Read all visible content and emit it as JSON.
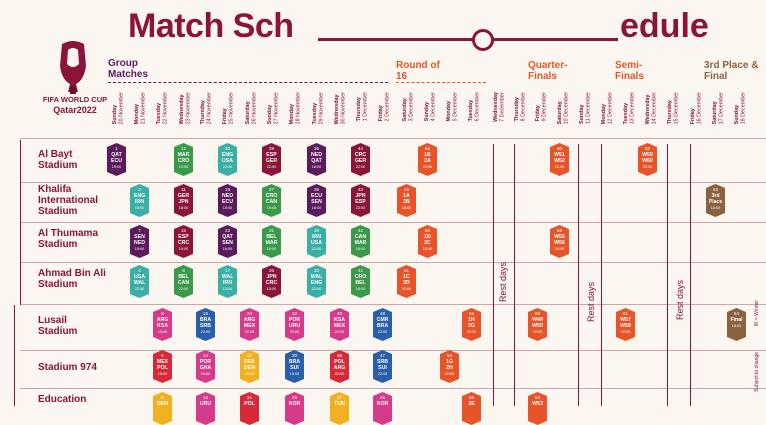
{
  "header": {
    "title_part1": "Match Sch",
    "title_part2": "edule"
  },
  "brand": {
    "line1": "FIFA WORLD CUP",
    "line2": "Qatar2022"
  },
  "stages": {
    "group": "Group Matches",
    "r16": "Round of 16",
    "qf": "Quarter-Finals",
    "sf": "Semi-Finals",
    "final": "3rd Place & Final"
  },
  "dates": [
    {
      "day": "Sunday",
      "date": "20 November"
    },
    {
      "day": "Monday",
      "date": "21 November"
    },
    {
      "day": "Tuesday",
      "date": "22 November"
    },
    {
      "day": "Wednesday",
      "date": "23 November"
    },
    {
      "day": "Thursday",
      "date": "24 November"
    },
    {
      "day": "Friday",
      "date": "25 November"
    },
    {
      "day": "Saturday",
      "date": "26 November"
    },
    {
      "day": "Sunday",
      "date": "27 November"
    },
    {
      "day": "Monday",
      "date": "28 November"
    },
    {
      "day": "Tuesday",
      "date": "29 November"
    },
    {
      "day": "Wednesday",
      "date": "30 November"
    },
    {
      "day": "Thursday",
      "date": "1 December"
    },
    {
      "day": "Friday",
      "date": "2 December"
    },
    {
      "day": "Saturday",
      "date": "3 December"
    },
    {
      "day": "Sunday",
      "date": "4 December"
    },
    {
      "day": "Monday",
      "date": "5 December"
    },
    {
      "day": "Tuesday",
      "date": "6 December"
    },
    {
      "day": "Wednesday",
      "date": "7 December"
    },
    {
      "day": "Thursday",
      "date": "8 December"
    },
    {
      "day": "Friday",
      "date": "9 December"
    },
    {
      "day": "Saturday",
      "date": "10 December"
    },
    {
      "day": "Sunday",
      "date": "11 December"
    },
    {
      "day": "Monday",
      "date": "12 December"
    },
    {
      "day": "Tuesday",
      "date": "13 December"
    },
    {
      "day": "Wednesday",
      "date": "14 December"
    },
    {
      "day": "Thursday",
      "date": "15 December"
    },
    {
      "day": "Friday",
      "date": "16 December"
    },
    {
      "day": "Saturday",
      "date": "17 December"
    },
    {
      "day": "Sunday",
      "date": "18 December"
    }
  ],
  "venues": [
    "Al Bayt Stadium",
    "Khalifa International Stadium",
    "Al Thumama Stadium",
    "Ahmad Bin Ali Stadium",
    "Lusail Stadium",
    "Stadium 974",
    "Education"
  ],
  "rest_label": "Rest days",
  "side_notes": {
    "winner": "W = Winner",
    "change": "Subject to change"
  },
  "colors": {
    "purple": "#5a1a5c",
    "green": "#3a9a4a",
    "teal": "#3ab0a4",
    "maroon": "#8a1538",
    "orange": "#e8542a",
    "brown": "#8a6240",
    "blue": "#2a5ea8",
    "pink": "#d63a8a",
    "yellow": "#f0b020",
    "red": "#d62a3a"
  },
  "matches": [
    {
      "n": "1",
      "a": "QAT",
      "b": "ECU",
      "t": "19:00",
      "c": "purple"
    },
    {
      "n": "12",
      "a": "MAR",
      "b": "CRO",
      "t": "13:00",
      "c": "green"
    },
    {
      "n": "20",
      "a": "ENG",
      "b": "USA",
      "t": "22:00",
      "c": "teal"
    },
    {
      "n": "28",
      "a": "ESP",
      "b": "GER",
      "t": "22:00",
      "c": "maroon"
    },
    {
      "n": "36",
      "a": "NED",
      "b": "QAT",
      "t": "18:00",
      "c": "purple"
    },
    {
      "n": "44",
      "a": "CRC",
      "b": "GER",
      "t": "22:00",
      "c": "maroon"
    },
    {
      "n": "52",
      "a": "1B",
      "b": "2A",
      "t": "22:00",
      "c": "orange"
    },
    {
      "n": "60",
      "a": "W51",
      "b": "W52",
      "t": "22:00",
      "c": "orange"
    },
    {
      "n": "62",
      "a": "W59",
      "b": "W60",
      "t": "22:00",
      "c": "orange"
    },
    {
      "n": "3",
      "a": "ENG",
      "b": "IRN",
      "t": "16:00",
      "c": "teal"
    },
    {
      "n": "11",
      "a": "GER",
      "b": "JPN",
      "t": "16:00",
      "c": "maroon"
    },
    {
      "n": "19",
      "a": "NED",
      "b": "ECU",
      "t": "19:00",
      "c": "purple"
    },
    {
      "n": "27",
      "a": "CRO",
      "b": "CAN",
      "t": "19:00",
      "c": "green"
    },
    {
      "n": "35",
      "a": "ECU",
      "b": "SEN",
      "t": "18:00",
      "c": "purple"
    },
    {
      "n": "43",
      "a": "JPN",
      "b": "ESP",
      "t": "22:00",
      "c": "maroon"
    },
    {
      "n": "49",
      "a": "1A",
      "b": "2B",
      "t": "18:00",
      "c": "orange"
    },
    {
      "n": "63",
      "a": "3rd",
      "b": "Place",
      "t": "18:00",
      "c": "brown"
    },
    {
      "n": "7",
      "a": "SEN",
      "b": "NED",
      "t": "19:00",
      "c": "purple"
    },
    {
      "n": "15",
      "a": "ESP",
      "b": "CRC",
      "t": "19:00",
      "c": "maroon"
    },
    {
      "n": "23",
      "a": "QAT",
      "b": "SEN",
      "t": "16:00",
      "c": "purple"
    },
    {
      "n": "31",
      "a": "BEL",
      "b": "MAR",
      "t": "16:00",
      "c": "green"
    },
    {
      "n": "39",
      "a": "IRN",
      "b": "USA",
      "t": "22:00",
      "c": "teal"
    },
    {
      "n": "42",
      "a": "CAN",
      "b": "MAR",
      "t": "18:00",
      "c": "green"
    },
    {
      "n": "50",
      "a": "1D",
      "b": "2C",
      "t": "18:00",
      "c": "orange"
    },
    {
      "n": "58",
      "a": "W55",
      "b": "W56",
      "t": "18:00",
      "c": "orange"
    },
    {
      "n": "4",
      "a": "USA",
      "b": "WAL",
      "t": "22:00",
      "c": "teal"
    },
    {
      "n": "8",
      "a": "BEL",
      "b": "CAN",
      "t": "22:00",
      "c": "green"
    },
    {
      "n": "17",
      "a": "WAL",
      "b": "IRN",
      "t": "13:00",
      "c": "teal"
    },
    {
      "n": "26",
      "a": "JPN",
      "b": "CRC",
      "t": "13:00",
      "c": "maroon"
    },
    {
      "n": "33",
      "a": "WAL",
      "b": "ENG",
      "t": "22:00",
      "c": "teal"
    },
    {
      "n": "41",
      "a": "CRO",
      "b": "BEL",
      "t": "18:00",
      "c": "green"
    },
    {
      "n": "51",
      "a": "1C",
      "b": "2D",
      "t": "22:00",
      "c": "orange"
    },
    {
      "n": "8",
      "a": "ARG",
      "b": "KSA",
      "t": "13:00",
      "c": "pink"
    },
    {
      "n": "16",
      "a": "BRA",
      "b": "SRB",
      "t": "22:00",
      "c": "blue"
    },
    {
      "n": "24",
      "a": "ARG",
      "b": "MEX",
      "t": "22:00",
      "c": "pink"
    },
    {
      "n": "32",
      "a": "POR",
      "b": "URU",
      "t": "22:00",
      "c": "pink"
    },
    {
      "n": "40",
      "a": "KSA",
      "b": "MEX",
      "t": "22:00",
      "c": "pink"
    },
    {
      "n": "48",
      "a": "CMR",
      "b": "BRA",
      "t": "22:00",
      "c": "blue"
    },
    {
      "n": "56",
      "a": "1H",
      "b": "2G",
      "t": "22:00",
      "c": "orange"
    },
    {
      "n": "59",
      "a": "W49",
      "b": "W50",
      "t": "22:00",
      "c": "orange"
    },
    {
      "n": "61",
      "a": "W57",
      "b": "W58",
      "t": "22:00",
      "c": "orange"
    },
    {
      "n": "64",
      "a": "Final",
      "b": "",
      "t": "18:00",
      "c": "brown"
    },
    {
      "n": "6",
      "a": "MEX",
      "b": "POL",
      "t": "19:00",
      "c": "red"
    },
    {
      "n": "14",
      "a": "POR",
      "b": "GHA",
      "t": "19:00",
      "c": "pink"
    },
    {
      "n": "22",
      "a": "FRA",
      "b": "DEN",
      "t": "19:00",
      "c": "yellow"
    },
    {
      "n": "30",
      "a": "BRA",
      "b": "SUI",
      "t": "19:00",
      "c": "blue"
    },
    {
      "n": "38",
      "a": "POL",
      "b": "ARG",
      "t": "22:00",
      "c": "red"
    },
    {
      "n": "47",
      "a": "SRB",
      "b": "SUI",
      "t": "22:00",
      "c": "blue"
    },
    {
      "n": "54",
      "a": "1G",
      "b": "2H",
      "t": "22:00",
      "c": "orange"
    },
    {
      "n": "5",
      "a": "DEN",
      "b": "",
      "t": "",
      "c": "yellow"
    },
    {
      "n": "13",
      "a": "URU",
      "b": "",
      "t": "",
      "c": "pink"
    },
    {
      "n": "21",
      "a": "POL",
      "b": "",
      "t": "",
      "c": "red"
    },
    {
      "n": "29",
      "a": "KOR",
      "b": "",
      "t": "",
      "c": "pink"
    },
    {
      "n": "37",
      "a": "TUN",
      "b": "",
      "t": "",
      "c": "yellow"
    },
    {
      "n": "45",
      "a": "KOR",
      "b": "",
      "t": "",
      "c": "pink"
    },
    {
      "n": "53",
      "a": "W53",
      "b": "",
      "t": "",
      "c": "orange"
    },
    {
      "n": "55",
      "a": "1E",
      "b": "",
      "t": "",
      "c": "orange"
    }
  ]
}
